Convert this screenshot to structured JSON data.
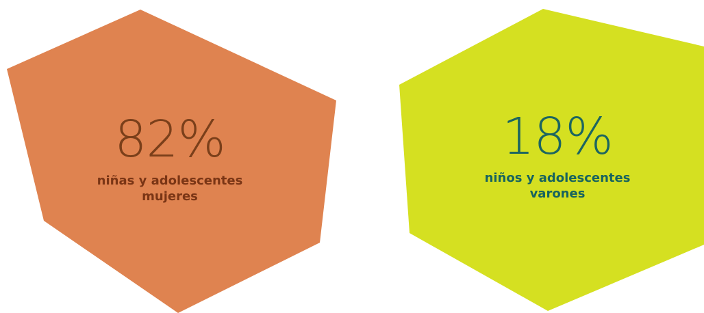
{
  "stats": [
    {
      "percent": "82%",
      "caption_line1": "niñas y adolescentes",
      "caption_line2": "mujeres",
      "shape_color": "#df8350",
      "text_color": "#7a3515"
    },
    {
      "percent": "18%",
      "caption_line1": "niños y adolescentes",
      "caption_line2": "varones",
      "shape_color": "#d5e021",
      "text_color": "#17635e"
    }
  ]
}
